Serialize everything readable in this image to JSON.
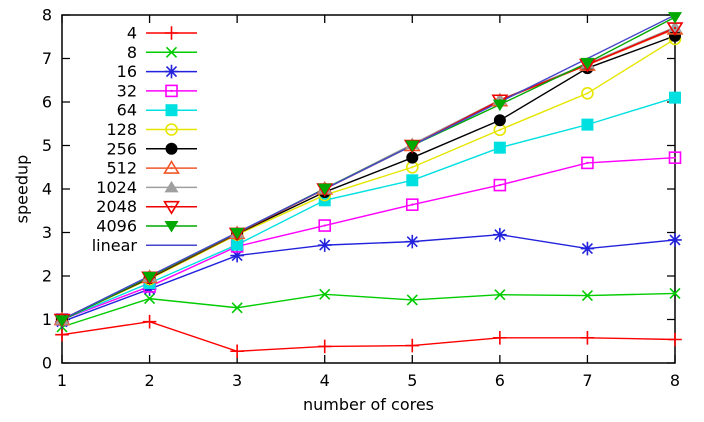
{
  "chart_data": {
    "type": "line",
    "title": "",
    "xlabel": "number of cores",
    "ylabel": "speedup",
    "x": [
      1,
      2,
      3,
      4,
      5,
      6,
      7,
      8
    ],
    "xlim": [
      1,
      8
    ],
    "ylim": [
      0,
      8
    ],
    "x_ticks": [
      1,
      2,
      3,
      4,
      5,
      6,
      7,
      8
    ],
    "y_ticks": [
      0,
      1,
      2,
      3,
      4,
      5,
      6,
      7,
      8
    ],
    "grid": false,
    "legend_position": "top-left-inside",
    "series": [
      {
        "name": "4",
        "color": "#ff0000",
        "marker": "plus",
        "values": [
          0.65,
          0.95,
          0.27,
          0.38,
          0.4,
          0.58,
          0.58,
          0.54
        ]
      },
      {
        "name": "8",
        "color": "#00cc00",
        "marker": "x",
        "values": [
          0.83,
          1.48,
          1.27,
          1.58,
          1.45,
          1.57,
          1.55,
          1.6
        ]
      },
      {
        "name": "16",
        "color": "#2222dd",
        "marker": "asterisk",
        "values": [
          0.95,
          1.7,
          2.47,
          2.71,
          2.79,
          2.95,
          2.63,
          2.83
        ]
      },
      {
        "name": "32",
        "color": "#ff00ff",
        "marker": "square-open",
        "values": [
          1.0,
          1.76,
          2.68,
          3.16,
          3.64,
          4.09,
          4.6,
          4.72
        ]
      },
      {
        "name": "64",
        "color": "#00e0e0",
        "marker": "square-filled",
        "values": [
          1.0,
          1.84,
          2.72,
          3.74,
          4.2,
          4.95,
          5.48,
          6.1
        ]
      },
      {
        "name": "128",
        "color": "#e6e600",
        "marker": "circle-open",
        "values": [
          1.0,
          1.93,
          2.95,
          3.86,
          4.5,
          5.36,
          6.2,
          7.45
        ]
      },
      {
        "name": "256",
        "color": "#000000",
        "marker": "circle-filled",
        "values": [
          1.0,
          1.95,
          2.97,
          3.93,
          4.72,
          5.58,
          6.78,
          7.52
        ]
      },
      {
        "name": "512",
        "color": "#f1592a",
        "marker": "triangle-up-open",
        "values": [
          1.0,
          1.97,
          2.98,
          4.0,
          5.0,
          6.03,
          6.85,
          7.68
        ]
      },
      {
        "name": "1024",
        "color": "#9f9f9f",
        "marker": "triangle-up-filled",
        "values": [
          1.0,
          1.98,
          2.99,
          4.01,
          5.03,
          6.05,
          6.88,
          7.72
        ]
      },
      {
        "name": "2048",
        "color": "#ee0000",
        "marker": "triangle-down-open",
        "values": [
          1.0,
          1.97,
          2.98,
          4.0,
          5.0,
          6.04,
          6.86,
          7.7
        ]
      },
      {
        "name": "4096",
        "color": "#00a800",
        "marker": "triangle-down-filled",
        "values": [
          0.98,
          1.98,
          2.99,
          4.01,
          5.0,
          5.94,
          6.9,
          7.95
        ]
      },
      {
        "name": "linear",
        "color": "#4646cc",
        "marker": "none",
        "values": [
          1,
          2,
          3,
          4,
          5,
          6,
          7,
          8
        ]
      }
    ]
  }
}
